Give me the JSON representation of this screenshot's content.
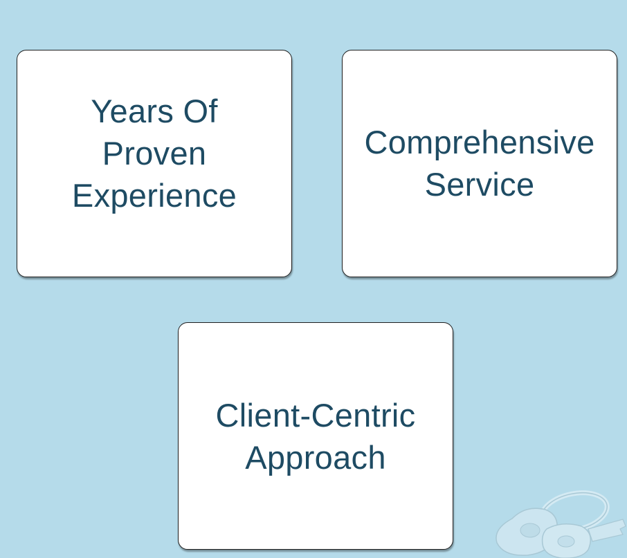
{
  "cards": [
    {
      "label": "Years Of\nProven\nExperience"
    },
    {
      "label": "Comprehensive\nService"
    },
    {
      "label": "Client-Centric\nApproach"
    }
  ],
  "colors": {
    "background": "#b5dbea",
    "card_background": "#ffffff",
    "card_border": "#1f1f1f",
    "text": "#1e4b63"
  },
  "decoration": {
    "icon": "keys-icon"
  }
}
